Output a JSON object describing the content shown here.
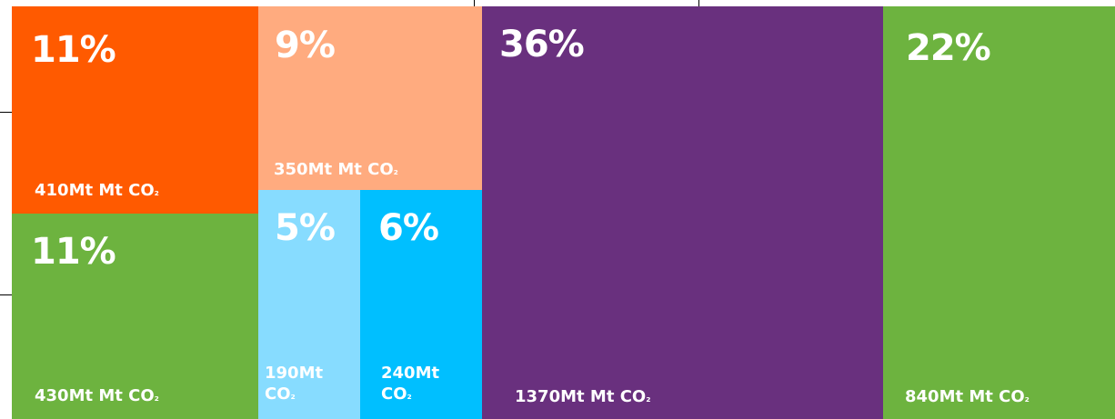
{
  "chart_data": {
    "type": "treemap",
    "unit_suffix": "Mt CO",
    "subscript": "₂",
    "items": [
      {
        "id": "t1",
        "percent": "11%",
        "emissions": "410Mt",
        "value": 410,
        "color": "#FF5A00"
      },
      {
        "id": "t2",
        "percent": "11%",
        "emissions": "430Mt",
        "value": 430,
        "color": "#6DB33F"
      },
      {
        "id": "t3",
        "percent": "9%",
        "emissions": "350Mt",
        "value": 350,
        "color": "#FFAB7F"
      },
      {
        "id": "t4",
        "percent": "5%",
        "emissions": "190Mt",
        "value": 190,
        "color": "#87DCFF"
      },
      {
        "id": "t5",
        "percent": "6%",
        "emissions": "240Mt",
        "value": 240,
        "color": "#00BFFF"
      },
      {
        "id": "t6",
        "percent": "36%",
        "emissions": "1370Mt",
        "value": 1370,
        "color": "#69307E"
      },
      {
        "id": "t7",
        "percent": "22%",
        "emissions": "840Mt",
        "value": 840,
        "color": "#6DB33F"
      }
    ]
  }
}
